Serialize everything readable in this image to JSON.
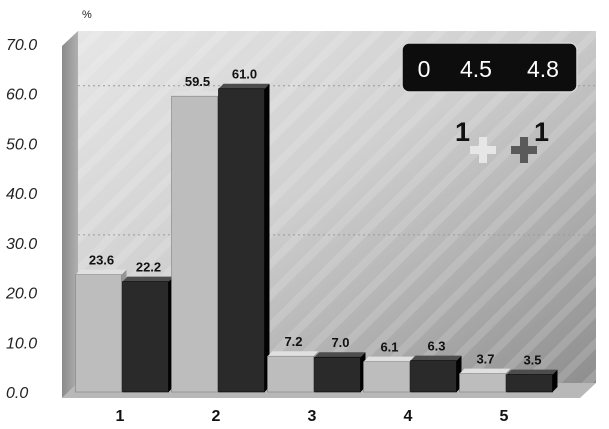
{
  "chart_data": {
    "type": "bar",
    "unit_label": "%",
    "categories": [
      "1",
      "2",
      "3",
      "4",
      "5"
    ],
    "series": [
      {
        "values": [
          23.6,
          59.5,
          7.2,
          6.1,
          3.7
        ],
        "color": "#bdbdbd"
      },
      {
        "values": [
          22.2,
          61.0,
          7.0,
          6.3,
          3.5
        ],
        "color": "#2a2a2a"
      }
    ],
    "data_labels": [
      [
        "23.6",
        "59.5",
        "7.2",
        "6.1",
        "3.7"
      ],
      [
        "22.2",
        "61.0",
        "7.0",
        "6.3",
        "3.5"
      ]
    ],
    "ylim": [
      0,
      70
    ],
    "yticks": [
      "0.0",
      "10.0",
      "20.0",
      "30.0",
      "40.0",
      "50.0",
      "60.0",
      "70.0"
    ],
    "gridlines": [
      30,
      60
    ],
    "score_box": [
      "0",
      "4.5",
      "4.8"
    ],
    "plus_markers": [
      {
        "count": "1",
        "color": "#e8e8e8"
      },
      {
        "count": "1",
        "color": "#5a5a5a"
      }
    ]
  }
}
